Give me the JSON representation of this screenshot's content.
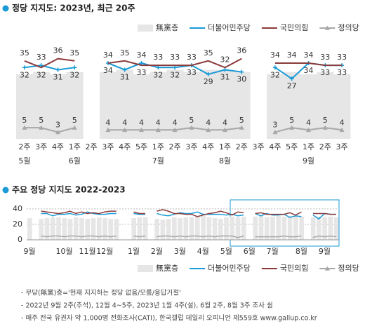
{
  "chart_data": [
    {
      "type": "line",
      "title": "정당 지지도: 2023년, 최근 20주",
      "unit": "(%)",
      "categories": [
        "2주",
        "3주",
        "4주",
        "1주",
        "2주",
        "3주",
        "4주",
        "5주",
        "1주",
        "2주",
        "3주",
        "4주",
        "1주",
        "2주",
        "3주",
        "4주",
        "5주",
        "1주",
        "2주",
        "3주"
      ],
      "month_labels": [
        "5월",
        null,
        null,
        "6월",
        null,
        null,
        null,
        null,
        "7월",
        null,
        null,
        null,
        "8월",
        null,
        null,
        null,
        null,
        "9월",
        null,
        null
      ],
      "ylim": [
        0,
        45
      ],
      "series": [
        {
          "name": "無黨층",
          "color": "#e6e6e6",
          "values": [
            29,
            30,
            29,
            30,
            null,
            30,
            31,
            29,
            30,
            31,
            30,
            31,
            31,
            30,
            null,
            29,
            30,
            29,
            30,
            29
          ]
        },
        {
          "name": "더불어민주당",
          "color": "#1a9ad6",
          "values": [
            32,
            33,
            31,
            32,
            null,
            34,
            31,
            34,
            32,
            32,
            33,
            29,
            31,
            30,
            null,
            32,
            27,
            34,
            33,
            33
          ]
        },
        {
          "name": "국민의힘",
          "color": "#8b3a3a",
          "values": [
            35,
            32,
            36,
            35,
            null,
            34,
            35,
            33,
            33,
            33,
            33,
            35,
            32,
            36,
            null,
            34,
            34,
            34,
            33,
            33
          ]
        },
        {
          "name": "정의당",
          "color": "#a8a8a8",
          "values": [
            5,
            5,
            3,
            5,
            null,
            4,
            4,
            4,
            4,
            4,
            5,
            4,
            4,
            5,
            null,
            3,
            5,
            4,
            5,
            4
          ]
        }
      ]
    },
    {
      "type": "line",
      "title": "주요 정당 지지도 2022-2023",
      "unit": "(%)",
      "categories": [
        "9월",
        null,
        null,
        null,
        null,
        null,
        "10월",
        null,
        null,
        null,
        "11월",
        null,
        null,
        "12월",
        null,
        null,
        null,
        null,
        "1월",
        null,
        null,
        null,
        "2월",
        null,
        null,
        null,
        "3월",
        null,
        null,
        null,
        "4월",
        null,
        null,
        null,
        "5월",
        null,
        null,
        null,
        "6월",
        null,
        null,
        null,
        "7월",
        null,
        null,
        null,
        null,
        "8월",
        null,
        null,
        null,
        "9월",
        null,
        null
      ],
      "ylim": [
        0,
        48
      ],
      "yticks": [
        0,
        20,
        40
      ],
      "grid": true,
      "series": [
        {
          "name": "無黨층",
          "color": "#e6e6e6",
          "values": [
            28,
            null,
            27,
            28,
            29,
            29,
            28,
            27,
            29,
            28,
            27,
            28,
            29,
            28,
            27,
            27,
            null,
            null,
            28,
            29,
            29,
            null,
            27,
            26,
            27,
            29,
            28,
            29,
            29,
            30,
            31,
            29,
            28,
            27,
            29,
            30,
            29,
            30,
            null,
            30,
            31,
            29,
            30,
            31,
            30,
            31,
            31,
            30,
            null,
            29,
            30,
            29,
            30,
            29
          ]
        },
        {
          "name": "더불어민주당",
          "color": "#1a9ad6",
          "values": [
            28,
            null,
            34,
            34,
            31,
            33,
            33,
            34,
            32,
            33,
            36,
            34,
            33,
            33,
            34,
            34,
            null,
            null,
            34,
            33,
            33,
            null,
            34,
            32,
            31,
            33,
            35,
            34,
            34,
            36,
            33,
            33,
            33,
            33,
            32,
            33,
            31,
            32,
            null,
            34,
            31,
            34,
            32,
            32,
            33,
            29,
            31,
            30,
            null,
            32,
            27,
            34,
            33,
            33
          ]
        },
        {
          "name": "국민의힘",
          "color": "#8b3a3a",
          "values": [
            33,
            null,
            37,
            36,
            35,
            34,
            35,
            37,
            34,
            36,
            34,
            35,
            34,
            36,
            37,
            37,
            null,
            null,
            36,
            34,
            34,
            null,
            37,
            39,
            37,
            34,
            34,
            33,
            33,
            30,
            32,
            34,
            35,
            37,
            35,
            32,
            36,
            35,
            null,
            34,
            35,
            33,
            33,
            33,
            33,
            35,
            32,
            36,
            null,
            34,
            34,
            34,
            33,
            33
          ]
        },
        {
          "name": "정의당",
          "color": "#a8a8a8",
          "values": [
            5,
            null,
            5,
            4,
            5,
            5,
            4,
            5,
            5,
            4,
            5,
            5,
            4,
            5,
            4,
            5,
            null,
            null,
            5,
            4,
            5,
            null,
            4,
            5,
            5,
            4,
            5,
            4,
            5,
            5,
            4,
            5,
            4,
            5,
            5,
            5,
            3,
            5,
            null,
            4,
            4,
            4,
            4,
            4,
            5,
            4,
            4,
            5,
            null,
            3,
            5,
            4,
            5,
            4
          ]
        }
      ]
    }
  ],
  "footnotes": [
    "- 무당(無黨)층='현재 지지하는 정당 없음/모름/응답거절'",
    "- 2022년 9월 2주(추석), 12월 4~5주, 2023년 1월 4주(설), 6월 2주, 8월 3주 조사 쉼",
    "- 매주 전국 유권자 약 1,000명 전화조사(CATI), 한국갤럽 데일리 오피니언 제559호 www.gallup.co.kr"
  ]
}
